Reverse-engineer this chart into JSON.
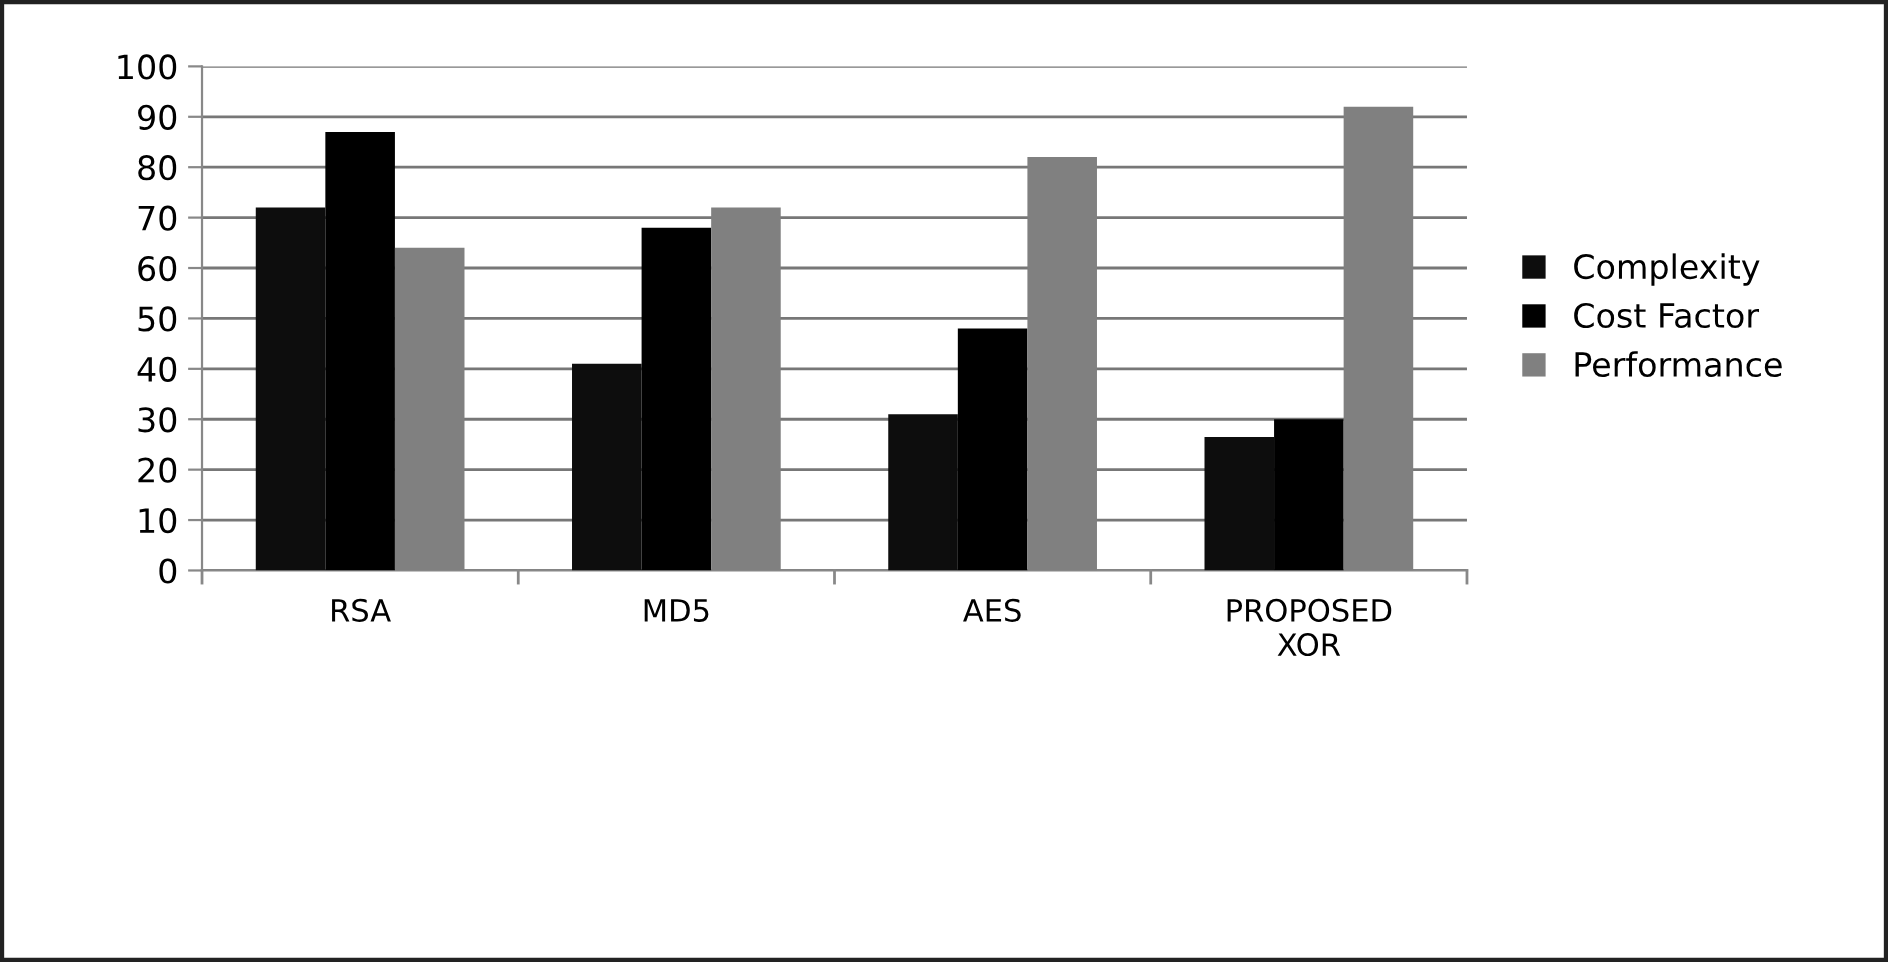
{
  "chart_data": {
    "type": "bar",
    "categories": [
      "RSA",
      "MD5",
      "AES",
      "PROPOSED\nXOR"
    ],
    "series": [
      {
        "name": "Complexity",
        "color": "#0d0d0d",
        "values": [
          72,
          41,
          31,
          26.5
        ]
      },
      {
        "name": "Cost Factor",
        "color": "#000000",
        "values": [
          87,
          68,
          48,
          30
        ]
      },
      {
        "name": "Performance",
        "color": "#808080",
        "values": [
          64,
          72,
          82,
          92
        ]
      }
    ],
    "ylim": [
      0,
      100
    ],
    "yticks": [
      0,
      10,
      20,
      30,
      40,
      50,
      60,
      70,
      80,
      90,
      100
    ],
    "grid": "y",
    "legend": "right"
  }
}
